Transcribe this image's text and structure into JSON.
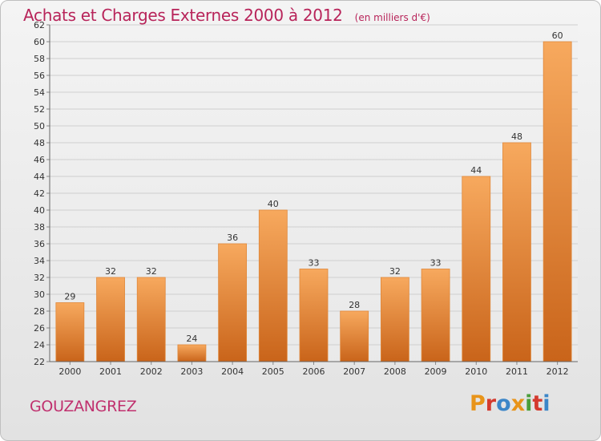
{
  "header": {
    "title": "Achats et Charges Externes 2000 à 2012",
    "unit": "(en milliers d'€)"
  },
  "footer": {
    "commune": "GOUZANGREZ",
    "brand": "Proxiti",
    "brand_colors": [
      "#e8941a",
      "#d43a2e",
      "#3c86c8",
      "#e8941a",
      "#4a9e3a",
      "#d43a2e",
      "#3c86c8"
    ]
  },
  "colors": {
    "bar_light": "#f7a95e",
    "bar_dark": "#c9641a",
    "title": "#b8245a",
    "grid": "#cfcfcf"
  },
  "chart_data": {
    "type": "bar",
    "categories": [
      "2000",
      "2001",
      "2002",
      "2003",
      "2004",
      "2005",
      "2006",
      "2007",
      "2008",
      "2009",
      "2010",
      "2011",
      "2012"
    ],
    "values": [
      29,
      32,
      32,
      24,
      36,
      40,
      33,
      28,
      32,
      33,
      44,
      48,
      60
    ],
    "ylim": [
      22,
      62
    ],
    "yticks": [
      22,
      24,
      26,
      28,
      30,
      32,
      34,
      36,
      38,
      40,
      42,
      44,
      46,
      48,
      50,
      52,
      54,
      56,
      58,
      60,
      62
    ],
    "grid": true,
    "legend": "none"
  }
}
